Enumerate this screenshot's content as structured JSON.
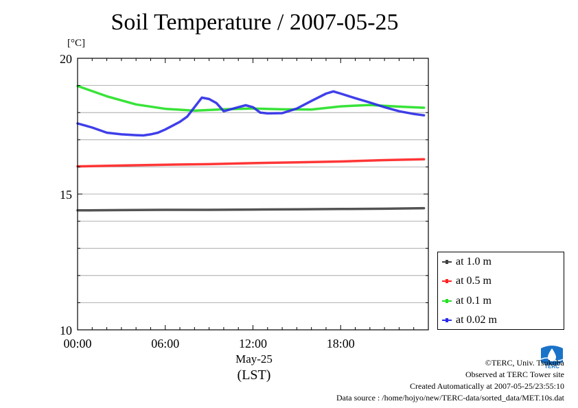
{
  "title": "Soil Temperature / 2007-05-25",
  "unit": "[°C]",
  "x_label_date": "May-25",
  "x_label_tz": "(LST)",
  "footer": {
    "copyright": "©TERC, Univ. Tsukuba",
    "observed": "Observed at TERC Tower site",
    "created": "Created Automatically at 2007-05-25/23:55:10",
    "source": "Data source : /home/hojyo/new/TERC-data/sorted_data/MET.10s.dat"
  },
  "logo": {
    "name": "terc-logo",
    "text": "TERC",
    "color": "#1a73c9"
  },
  "chart_data": {
    "type": "line",
    "title": "Soil Temperature / 2007-05-25",
    "ylabel": "[°C]",
    "ylim": [
      10,
      20
    ],
    "xlim": [
      0,
      24
    ],
    "yticks": [
      10,
      15,
      20
    ],
    "xticks": [
      0,
      6,
      12,
      18
    ],
    "xtick_labels": [
      "00:00",
      "06:00",
      "12:00",
      "18:00"
    ],
    "grid": true,
    "legend_position": "right",
    "series": [
      {
        "name": "at 1.0 m",
        "color": "#404040",
        "x": [
          0,
          3,
          6,
          9,
          12,
          15,
          18,
          21,
          23.7
        ],
        "y": [
          14.4,
          14.41,
          14.42,
          14.42,
          14.43,
          14.44,
          14.45,
          14.46,
          14.48
        ]
      },
      {
        "name": "at 0.5 m",
        "color": "#ff2020",
        "x": [
          0,
          3,
          6,
          9,
          12,
          15,
          18,
          21,
          23.7
        ],
        "y": [
          16.02,
          16.05,
          16.08,
          16.1,
          16.14,
          16.17,
          16.2,
          16.25,
          16.28
        ]
      },
      {
        "name": "at 0.1 m",
        "color": "#22e022",
        "x": [
          0,
          2,
          4,
          6,
          8,
          10,
          12,
          14,
          16,
          18,
          20,
          22,
          23.7
        ],
        "y": [
          18.98,
          18.6,
          18.3,
          18.14,
          18.07,
          18.12,
          18.15,
          18.12,
          18.11,
          18.23,
          18.28,
          18.22,
          18.18
        ]
      },
      {
        "name": "at 0.02 m",
        "color": "#2a2ae8",
        "x": [
          0,
          1,
          2,
          3,
          4,
          4.5,
          5,
          5.5,
          6,
          7,
          7.5,
          8,
          8.5,
          9,
          9.5,
          10,
          11,
          11.5,
          12,
          12.5,
          13,
          14,
          15,
          16,
          17,
          17.5,
          18,
          19,
          20,
          21,
          22,
          23,
          23.7
        ],
        "y": [
          17.6,
          17.45,
          17.26,
          17.2,
          17.17,
          17.16,
          17.2,
          17.26,
          17.38,
          17.66,
          17.85,
          18.2,
          18.55,
          18.5,
          18.35,
          18.05,
          18.2,
          18.27,
          18.2,
          18.0,
          17.97,
          17.98,
          18.15,
          18.43,
          18.7,
          18.78,
          18.7,
          18.53,
          18.37,
          18.2,
          18.05,
          17.95,
          17.9
        ]
      }
    ]
  }
}
